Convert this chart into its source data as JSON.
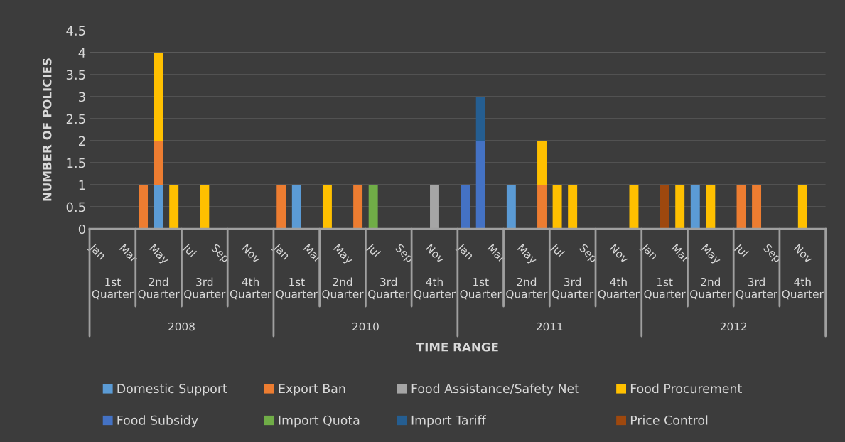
{
  "chart_data": {
    "type": "bar",
    "stacked": true,
    "ylabel": "NUMBER OF POLICIES",
    "categories": [
      "Jan",
      null,
      "Mar",
      null,
      "May",
      null,
      "Jul",
      null,
      "Sep",
      null,
      "Nov",
      null,
      "Jan",
      null,
      "Mar",
      null,
      "May",
      null,
      "Jul",
      null,
      "Sep",
      null,
      "Nov",
      null,
      "Jan",
      null,
      "Mar",
      null,
      "May",
      null,
      "Jul",
      null,
      "Sep",
      null,
      "Nov",
      null,
      "Jan",
      null,
      "Mar",
      null,
      "May",
      null,
      "Jul",
      null,
      "Sep",
      null,
      "Nov",
      null
    ],
    "series": [
      {
        "name": "Domestic Support",
        "color": "#5b9bd5",
        "values": [
          null,
          null,
          null,
          null,
          1,
          null,
          null,
          null,
          null,
          null,
          null,
          null,
          null,
          1,
          null,
          null,
          null,
          null,
          null,
          null,
          null,
          null,
          null,
          null,
          null,
          null,
          null,
          1,
          null,
          null,
          null,
          null,
          null,
          null,
          null,
          null,
          null,
          null,
          null,
          1,
          null,
          null,
          null,
          null,
          null,
          null,
          null,
          null
        ]
      },
      {
        "name": "Export Ban",
        "color": "#ed7d31",
        "values": [
          null,
          null,
          null,
          1,
          1,
          null,
          null,
          null,
          null,
          null,
          null,
          null,
          1,
          null,
          null,
          null,
          null,
          1,
          null,
          null,
          null,
          null,
          null,
          null,
          null,
          null,
          null,
          null,
          null,
          1,
          null,
          null,
          null,
          null,
          null,
          null,
          null,
          null,
          null,
          null,
          null,
          null,
          1,
          1,
          null,
          null,
          null,
          null
        ]
      },
      {
        "name": "Food Assistance/Safety Net",
        "color": "#a5a5a5",
        "values": [
          null,
          null,
          null,
          null,
          null,
          null,
          null,
          null,
          null,
          null,
          null,
          null,
          null,
          null,
          null,
          null,
          null,
          null,
          null,
          null,
          null,
          null,
          1,
          null,
          null,
          null,
          null,
          null,
          null,
          null,
          null,
          null,
          null,
          null,
          null,
          null,
          null,
          null,
          null,
          null,
          null,
          null,
          null,
          null,
          null,
          null,
          null,
          null
        ]
      },
      {
        "name": "Food Procurement",
        "color": "#ffc000",
        "values": [
          null,
          null,
          null,
          null,
          2,
          1,
          null,
          1,
          null,
          null,
          null,
          null,
          null,
          null,
          null,
          1,
          null,
          null,
          null,
          null,
          null,
          null,
          null,
          null,
          null,
          null,
          null,
          null,
          null,
          1,
          1,
          1,
          null,
          null,
          null,
          1,
          null,
          null,
          1,
          null,
          1,
          null,
          null,
          null,
          null,
          null,
          1,
          null
        ]
      },
      {
        "name": "Food Subsidy",
        "color": "#4472c4",
        "values": [
          null,
          null,
          null,
          null,
          null,
          null,
          null,
          null,
          null,
          null,
          null,
          null,
          null,
          null,
          null,
          null,
          null,
          null,
          null,
          null,
          null,
          null,
          null,
          null,
          1,
          2,
          null,
          null,
          null,
          null,
          null,
          null,
          null,
          null,
          null,
          null,
          null,
          null,
          null,
          null,
          null,
          null,
          null,
          null,
          null,
          null,
          null,
          null
        ]
      },
      {
        "name": "Import Quota",
        "color": "#70ad47",
        "values": [
          null,
          null,
          null,
          null,
          null,
          null,
          null,
          null,
          null,
          null,
          null,
          null,
          null,
          null,
          null,
          null,
          null,
          null,
          1,
          null,
          null,
          null,
          null,
          null,
          null,
          null,
          null,
          null,
          null,
          null,
          null,
          null,
          null,
          null,
          null,
          null,
          null,
          null,
          null,
          null,
          null,
          null,
          null,
          null,
          null,
          null,
          null,
          null
        ]
      },
      {
        "name": "Import Tariff",
        "color": "#255e91",
        "values": [
          null,
          null,
          null,
          null,
          null,
          null,
          null,
          null,
          null,
          null,
          null,
          null,
          null,
          null,
          null,
          null,
          null,
          null,
          null,
          null,
          null,
          null,
          null,
          null,
          null,
          1,
          null,
          null,
          null,
          null,
          null,
          null,
          null,
          null,
          null,
          null,
          null,
          null,
          null,
          null,
          null,
          null,
          null,
          null,
          null,
          null,
          null,
          null
        ]
      },
      {
        "name": "Price Control",
        "color": "#9e480e",
        "values": [
          null,
          null,
          null,
          null,
          null,
          null,
          null,
          null,
          null,
          null,
          null,
          null,
          null,
          null,
          null,
          null,
          null,
          null,
          null,
          null,
          null,
          null,
          null,
          null,
          null,
          null,
          null,
          null,
          null,
          null,
          null,
          null,
          null,
          null,
          null,
          null,
          null,
          1,
          null,
          null,
          null,
          null,
          null,
          null,
          null,
          null,
          null,
          null
        ]
      }
    ],
    "ylim": [
      0,
      4.5
    ],
    "yticks": [
      0,
      0.5,
      1,
      1.5,
      2,
      2.5,
      3,
      3.5,
      4,
      4.5
    ],
    "grid": "y",
    "legend": "bottom",
    "annotations": [
      "1st Quarter",
      "2nd Quarter",
      "3rd Quarter",
      "4th Quarter",
      "1st Quarter",
      "2nd Quarter",
      "3rd Quarter",
      "4th Quarter",
      "1st Quarter",
      "2nd Quarter",
      "3rd Quarter",
      "4th Quarter",
      "1st Quarter",
      "2nd Quarter",
      "3rd Quarter",
      "4th Quarter",
      "2008",
      "2010",
      "2011",
      "2012",
      "TIME RANGE"
    ]
  }
}
